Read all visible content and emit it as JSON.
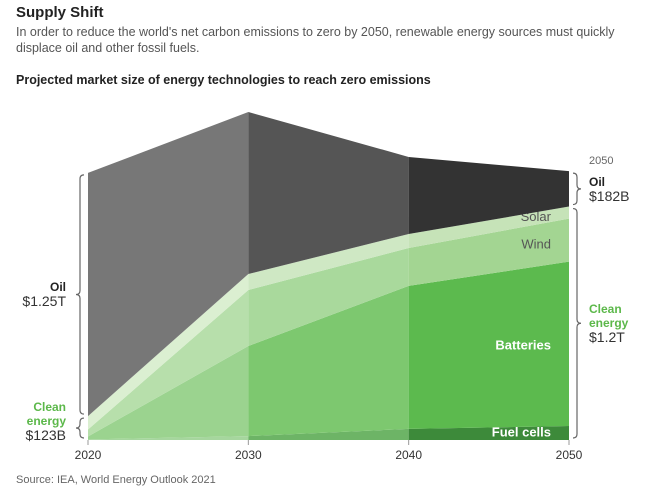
{
  "title": "Supply Shift",
  "subtitle": "In order to reduce the world's net carbon emissions to zero by 2050, renewable energy sources must quickly displace oil and other fossil fuels.",
  "source": "Source: IEA, World Energy Outlook 2021",
  "chart_data": {
    "type": "stacked-area",
    "title": "Projected market size of energy technologies to reach zero emissions",
    "x": [
      2020,
      2030,
      2040,
      2050
    ],
    "xlim": [
      2020,
      2050
    ],
    "xticks": [
      2020,
      2030,
      2040,
      2050
    ],
    "end_label": "2050",
    "series": [
      {
        "name": "Fuel cells",
        "colors": [
          "#a6d69e",
          "#6db466",
          "#3d8a3a"
        ],
        "label_color": "#ffffff",
        "values": [
          3,
          20,
          57,
          72
        ]
      },
      {
        "name": "Batteries",
        "colors": [
          "#9bd38f",
          "#7dc86f",
          "#5cba4e"
        ],
        "label_color": "#ffffff",
        "values": [
          15,
          463,
          735,
          845
        ]
      },
      {
        "name": "Wind",
        "colors": [
          "#b7dfab",
          "#a9d99c",
          "#a3d592"
        ],
        "label_color": "#555555",
        "values": [
          36,
          288,
          195,
          221
        ]
      },
      {
        "name": "Solar",
        "colors": [
          "#dbefd1",
          "#cfe8c4",
          "#c6e3b8"
        ],
        "label_color": "#555555",
        "values": [
          69,
          82,
          72,
          62
        ]
      },
      {
        "name": "Oil",
        "colors": [
          "#777777",
          "#555555",
          "#333333"
        ],
        "values": [
          1250,
          833,
          396,
          182
        ]
      }
    ],
    "annotations": [
      {
        "name": "Clean energy",
        "color": "#5cb84a",
        "label": "$123B",
        "value": 123,
        "side": "left"
      },
      {
        "label": "$1.25T",
        "value": 1250,
        "side": "left"
      },
      {
        "name": "Clean energy",
        "color": "#5cb84a",
        "label": "$1.2T",
        "value": 1200,
        "side": "right"
      },
      {
        "label": "$182B",
        "value": 182,
        "side": "right"
      }
    ]
  }
}
